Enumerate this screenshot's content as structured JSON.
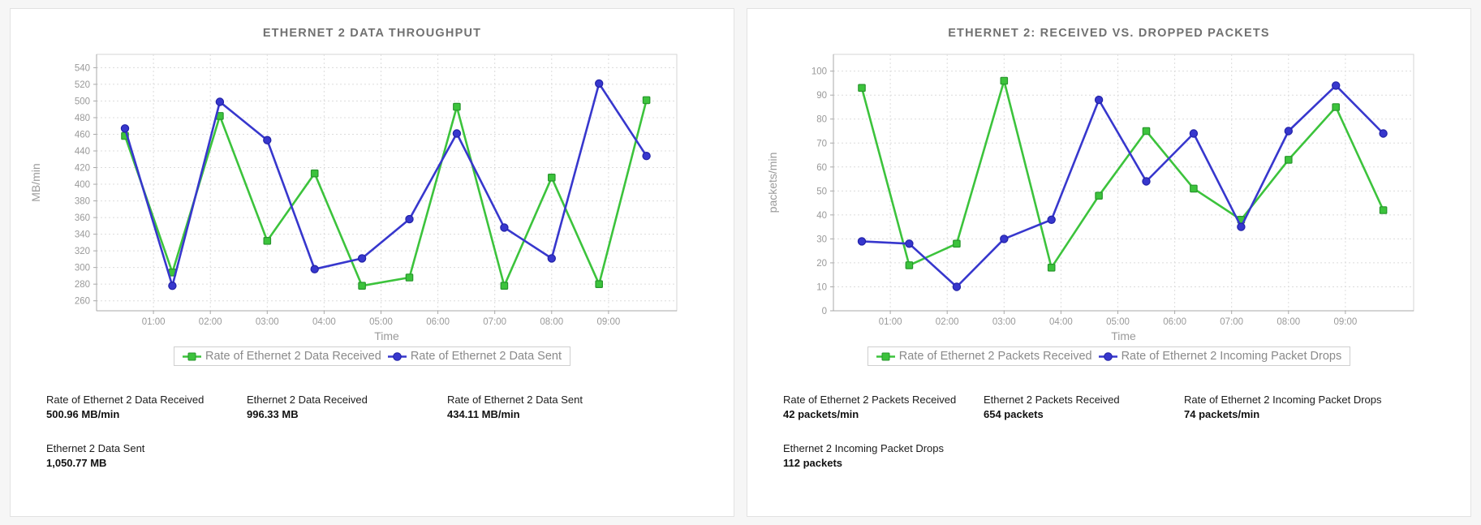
{
  "page": {
    "background": "#f6f6f6",
    "panel_border": "#e2e2e2"
  },
  "colors": {
    "green_series": "#3cc33c",
    "green_marker_stroke": "#27962c",
    "blue_series": "#3737cd",
    "blue_marker_stroke": "#2222a8",
    "grid": "#dcdcdc",
    "plot_border": "#d6d6d6",
    "spine": "#a8a8a8",
    "tick_text": "#999999",
    "title_text": "#717171"
  },
  "panels": [
    {
      "title": "ETHERNET 2 DATA THROUGHPUT",
      "stats": [
        {
          "label": "Rate of Ethernet 2 Data Received",
          "value": "500.96 MB/min"
        },
        {
          "label": "Ethernet 2 Data Received",
          "value": "996.33 MB"
        },
        {
          "label": "Rate of Ethernet 2 Data Sent",
          "value": "434.11 MB/min"
        },
        {
          "label": "Ethernet 2 Data Sent",
          "value": "1,050.77 MB"
        }
      ]
    },
    {
      "title": "ETHERNET 2: RECEIVED VS. DROPPED PACKETS",
      "stats": [
        {
          "label": "Rate of Ethernet 2 Packets Received",
          "value": "42 packets/min"
        },
        {
          "label": "Ethernet 2 Packets Received",
          "value": "654 packets"
        },
        {
          "label": "Rate of Ethernet 2 Incoming Packet Drops",
          "value": "74 packets/min"
        },
        {
          "label": "Ethernet 2 Incoming Packet Drops",
          "value": "112 packets"
        }
      ]
    }
  ],
  "chart_data": [
    {
      "type": "line",
      "title": "ETHERNET 2 DATA THROUGHPUT",
      "xlabel": "Time",
      "ylabel": "MB/min",
      "categories": [
        "00:30",
        "01:20",
        "02:10",
        "03:00",
        "03:50",
        "04:40",
        "05:30",
        "06:20",
        "07:10",
        "08:00",
        "08:50",
        "09:40"
      ],
      "x": [
        0.5,
        1.333,
        2.167,
        3.0,
        3.833,
        4.667,
        5.5,
        6.333,
        7.167,
        8.0,
        8.833,
        9.667
      ],
      "series": [
        {
          "name": "Rate of Ethernet 2 Data Received",
          "color": "#3cc33c",
          "marker": "square",
          "marker_stroke": "#27962c",
          "values": [
            458,
            294,
            482,
            332,
            413,
            278,
            288,
            493,
            278,
            408,
            280,
            501
          ]
        },
        {
          "name": "Rate of Ethernet 2 Data Sent",
          "color": "#3737cd",
          "marker": "circle",
          "marker_stroke": "#2222a8",
          "values": [
            467,
            278,
            499,
            453,
            298,
            311,
            358,
            461,
            348,
            311,
            521,
            434
          ]
        }
      ],
      "ylim": [
        248,
        556
      ],
      "yticks": [
        260,
        280,
        300,
        320,
        340,
        360,
        380,
        400,
        420,
        440,
        460,
        480,
        500,
        520,
        540
      ],
      "xlim": [
        0,
        10.2
      ],
      "xticks": [
        1,
        2,
        3,
        4,
        5,
        6,
        7,
        8,
        9
      ],
      "x_tick_labels": [
        "01:00",
        "02:00",
        "03:00",
        "04:00",
        "05:00",
        "06:00",
        "07:00",
        "08:00",
        "09:00"
      ],
      "grid": true,
      "legend_position": "bottom"
    },
    {
      "type": "line",
      "title": "ETHERNET 2: RECEIVED VS. DROPPED PACKETS",
      "xlabel": "Time",
      "ylabel": "packets/min",
      "categories": [
        "00:30",
        "01:20",
        "02:10",
        "03:00",
        "03:50",
        "04:40",
        "05:30",
        "06:20",
        "07:10",
        "08:00",
        "08:50",
        "09:40"
      ],
      "x": [
        0.5,
        1.333,
        2.167,
        3.0,
        3.833,
        4.667,
        5.5,
        6.333,
        7.167,
        8.0,
        8.833,
        9.667
      ],
      "series": [
        {
          "name": "Rate of Ethernet 2 Packets Received",
          "color": "#3cc33c",
          "marker": "square",
          "marker_stroke": "#27962c",
          "values": [
            93,
            19,
            28,
            96,
            18,
            48,
            75,
            51,
            38,
            63,
            85,
            42
          ]
        },
        {
          "name": "Rate of Ethernet 2 Incoming Packet Drops",
          "color": "#3737cd",
          "marker": "circle",
          "marker_stroke": "#2222a8",
          "values": [
            29,
            28,
            10,
            30,
            38,
            88,
            54,
            74,
            35,
            75,
            94,
            74
          ]
        }
      ],
      "ylim": [
        0,
        107
      ],
      "yticks": [
        0,
        10,
        20,
        30,
        40,
        50,
        60,
        70,
        80,
        90,
        100
      ],
      "xlim": [
        0,
        10.2
      ],
      "xticks": [
        1,
        2,
        3,
        4,
        5,
        6,
        7,
        8,
        9
      ],
      "x_tick_labels": [
        "01:00",
        "02:00",
        "03:00",
        "04:00",
        "05:00",
        "06:00",
        "07:00",
        "08:00",
        "09:00"
      ],
      "grid": true,
      "legend_position": "bottom"
    }
  ]
}
